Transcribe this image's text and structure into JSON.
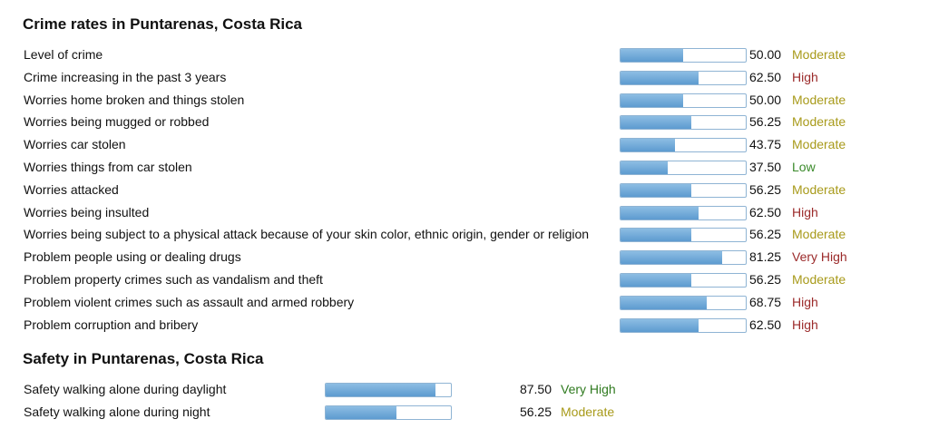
{
  "sections": [
    {
      "title": "Crime rates in Puntarenas, Costa Rica",
      "rows": [
        {
          "label": "Level of crime",
          "score": {
            "value": 50,
            "label": "50.00"
          },
          "rating": "Moderate",
          "color": "#a89a1a"
        },
        {
          "label": "Crime increasing in the past 3 years",
          "score": {
            "value": 62.5,
            "label": "62.50"
          },
          "rating": "High",
          "color": "#9b2a2a"
        },
        {
          "label": "Worries home broken and things stolen",
          "score": {
            "value": 50,
            "label": "50.00"
          },
          "rating": "Moderate",
          "color": "#a89a1a"
        },
        {
          "label": "Worries being mugged or robbed",
          "score": {
            "value": 56.25,
            "label": "56.25"
          },
          "rating": "Moderate",
          "color": "#a89a1a"
        },
        {
          "label": "Worries car stolen",
          "score": {
            "value": 43.75,
            "label": "43.75"
          },
          "rating": "Moderate",
          "color": "#a89a1a"
        },
        {
          "label": "Worries things from car stolen",
          "score": {
            "value": 37.5,
            "label": "37.50"
          },
          "rating": "Low",
          "color": "#3a8a2a"
        },
        {
          "label": "Worries attacked",
          "score": {
            "value": 56.25,
            "label": "56.25"
          },
          "rating": "Moderate",
          "color": "#a89a1a"
        },
        {
          "label": "Worries being insulted",
          "score": {
            "value": 62.5,
            "label": "62.50"
          },
          "rating": "High",
          "color": "#9b2a2a"
        },
        {
          "label": "Worries being subject to a physical attack because of your skin color, ethnic origin, gender or religion",
          "score": {
            "value": 56.25,
            "label": "56.25"
          },
          "rating": "Moderate",
          "color": "#a89a1a"
        },
        {
          "label": "Problem people using or dealing drugs",
          "score": {
            "value": 81.25,
            "label": "81.25"
          },
          "rating": "Very High",
          "color": "#9b2a2a"
        },
        {
          "label": "Problem property crimes such as vandalism and theft",
          "score": {
            "value": 56.25,
            "label": "56.25"
          },
          "rating": "Moderate",
          "color": "#a89a1a"
        },
        {
          "label": "Problem violent crimes such as assault and armed robbery",
          "score": {
            "value": 68.75,
            "label": "68.75"
          },
          "rating": "High",
          "color": "#9b2a2a"
        },
        {
          "label": "Problem corruption and bribery",
          "score": {
            "value": 62.5,
            "label": "62.50"
          },
          "rating": "High",
          "color": "#9b2a2a"
        }
      ]
    },
    {
      "title": "Safety in Puntarenas, Costa Rica",
      "rows": [
        {
          "label": "Safety walking alone during daylight",
          "score": {
            "value": 87.5,
            "label": "87.50"
          },
          "rating": "Very High",
          "color": "#2f7a1f"
        },
        {
          "label": "Safety walking alone during night",
          "score": {
            "value": 56.25,
            "label": "56.25"
          },
          "rating": "Moderate",
          "color": "#a89a1a"
        }
      ]
    }
  ]
}
